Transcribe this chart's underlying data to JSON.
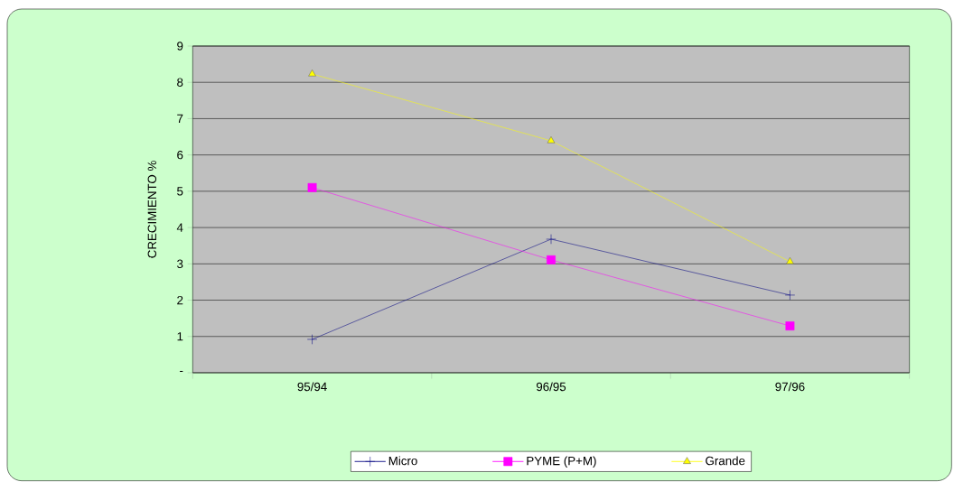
{
  "chart_data": {
    "type": "line",
    "ylabel": "CRECIMIENTO %",
    "categories": [
      "95/94",
      "96/95",
      "97/96"
    ],
    "series": [
      {
        "name": "Micro",
        "color": "#000080",
        "marker": "cross",
        "values": [
          0.92,
          3.68,
          2.14
        ]
      },
      {
        "name": "PYME (P+M)",
        "color": "#ff00ff",
        "marker": "square",
        "values": [
          5.1,
          3.11,
          1.29
        ]
      },
      {
        "name": "Grande",
        "color": "#ffff00",
        "marker": "triangle",
        "values": [
          8.23,
          6.39,
          3.06
        ]
      }
    ],
    "ylim": [
      0,
      9
    ],
    "yticks": [
      {
        "value": 0,
        "label": "-"
      },
      1,
      2,
      3,
      4,
      5,
      6,
      7,
      8,
      9
    ],
    "grid": "y",
    "legend": "bottom"
  }
}
